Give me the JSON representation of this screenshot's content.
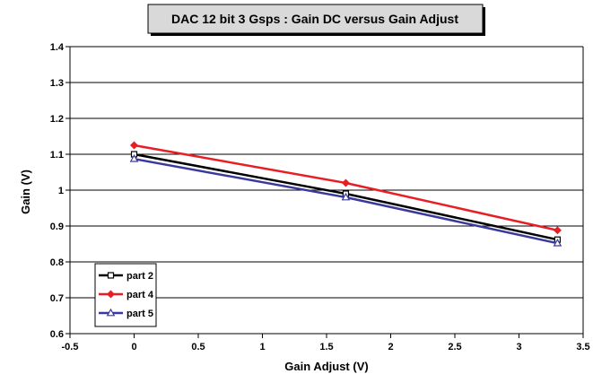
{
  "chart_data": {
    "type": "line",
    "title": "DAC 12 bit 3 Gsps : Gain DC versus Gain Adjust",
    "xlabel": "Gain Adjust (V)",
    "ylabel": "Gain (V)",
    "xlim": [
      -0.5,
      3.5
    ],
    "ylim": [
      0.6,
      1.4
    ],
    "x_ticks": [
      "-0.5",
      "0",
      "0.5",
      "1",
      "1.5",
      "2",
      "2.5",
      "3",
      "3.5"
    ],
    "y_ticks": [
      "0.6",
      "0.7",
      "0.8",
      "0.9",
      "1",
      "1.1",
      "1.2",
      "1.3",
      "1.4"
    ],
    "grid": "horizontal",
    "legend_position": "bottom-left",
    "series": [
      {
        "name": "part 2",
        "color": "#000000",
        "marker": "square",
        "x": [
          0,
          1.65,
          3.3
        ],
        "y": [
          1.1,
          0.99,
          0.862
        ]
      },
      {
        "name": "part 4",
        "color": "#e81e25",
        "marker": "diamond",
        "x": [
          0,
          1.65,
          3.3
        ],
        "y": [
          1.125,
          1.02,
          0.888
        ]
      },
      {
        "name": "part 5",
        "color": "#3a3a9e",
        "marker": "triangle",
        "x": [
          0,
          1.65,
          3.3
        ],
        "y": [
          1.087,
          0.98,
          0.852
        ]
      }
    ]
  }
}
